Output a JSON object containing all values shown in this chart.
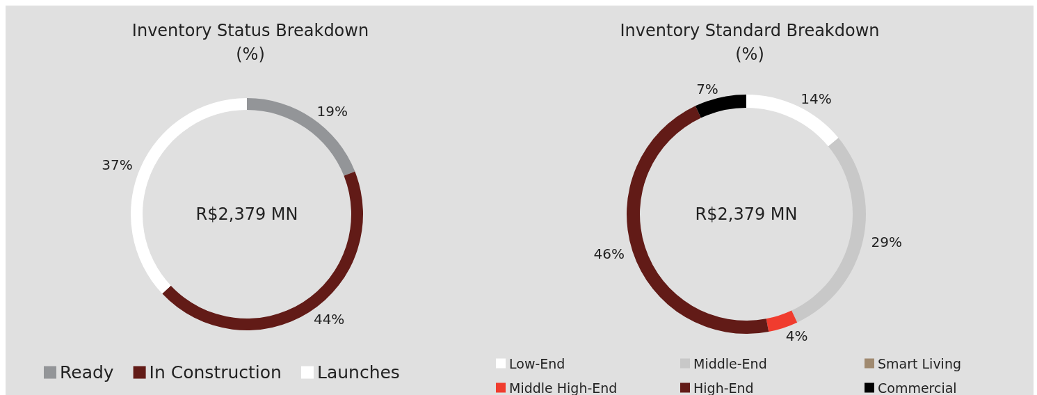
{
  "chart_data": [
    {
      "type": "donut",
      "title": "Inventory Status Breakdown\n(%)",
      "categories": [
        "Ready",
        "In Construction",
        "Launches"
      ],
      "values": [
        19,
        44,
        37
      ],
      "colors": [
        "#939598",
        "#621b17",
        "#ffffff"
      ],
      "value_labels": [
        "19%",
        "44%",
        "37%"
      ],
      "annotations": [
        "R$2,379 MN"
      ],
      "legend": "bottom"
    },
    {
      "type": "donut",
      "title": "Inventory Standard Breakdown\n(%)",
      "categories": [
        "Low-End",
        "Middle-End",
        "Smart Living",
        "Middle High-End",
        "High-End",
        "Commercial"
      ],
      "values": [
        14,
        29,
        0,
        4,
        46,
        7
      ],
      "colors": [
        "#ffffff",
        "#c8c8c8",
        "#a08a70",
        "#f03c2e",
        "#621b17",
        "#000000"
      ],
      "value_labels": [
        "14%",
        "29%",
        null,
        "4%",
        "46%",
        "7%"
      ],
      "annotations": [
        "R$2,379 MN"
      ],
      "legend": "bottom"
    }
  ]
}
